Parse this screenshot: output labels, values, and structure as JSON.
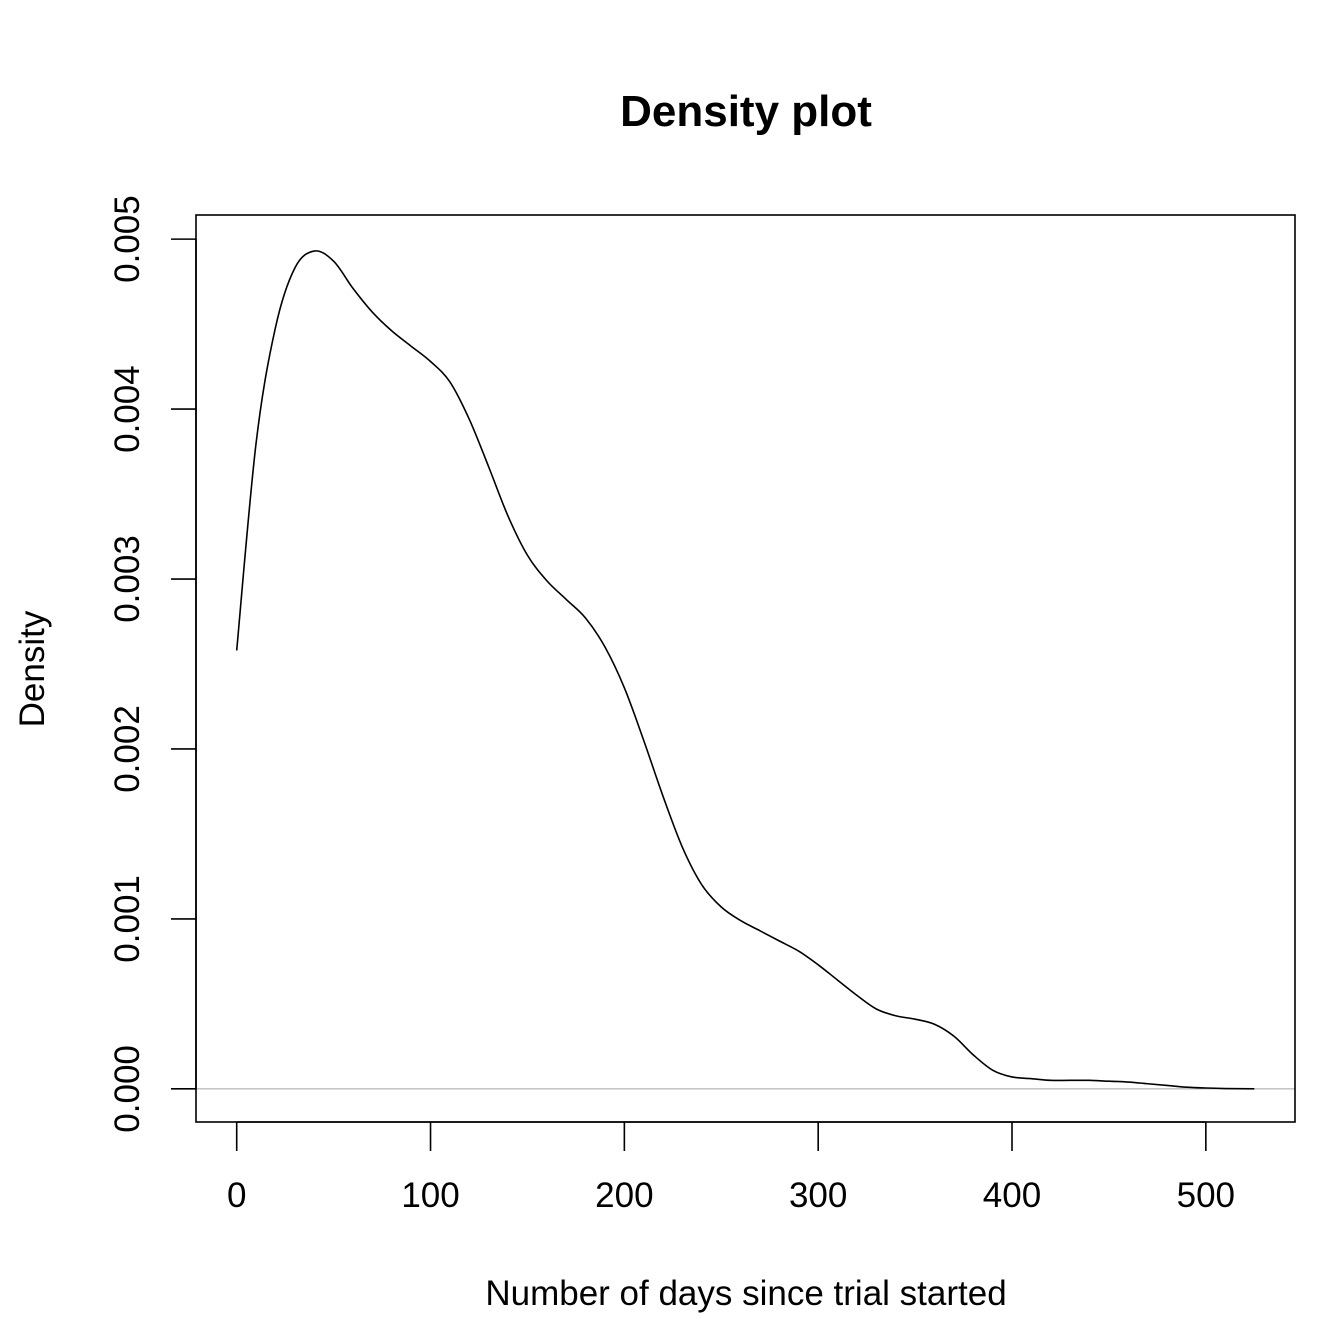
{
  "chart_data": {
    "type": "line",
    "title": "Density plot",
    "xlabel": "Number of days since trial started",
    "ylabel": "Density",
    "xlim": [
      -21,
      546
    ],
    "ylim": [
      -0.000195,
      0.005142
    ],
    "x_ticks": [
      0,
      100,
      200,
      300,
      400,
      500
    ],
    "x_tick_labels": [
      "0",
      "100",
      "200",
      "300",
      "400",
      "500"
    ],
    "y_ticks": [
      0,
      0.001,
      0.002,
      0.003,
      0.004,
      0.005
    ],
    "y_tick_labels": [
      "0.000",
      "0.001",
      "0.002",
      "0.003",
      "0.004",
      "0.005"
    ],
    "baseline": 0,
    "baseline_color": "#bebebe",
    "line_color": "#000000",
    "series": [
      {
        "name": "density",
        "x": [
          0,
          10,
          20,
          30,
          40,
          50,
          60,
          70,
          80,
          90,
          100,
          110,
          120,
          130,
          140,
          150,
          160,
          170,
          180,
          190,
          200,
          210,
          220,
          230,
          240,
          250,
          260,
          270,
          280,
          290,
          300,
          310,
          320,
          330,
          340,
          350,
          360,
          370,
          380,
          390,
          400,
          410,
          420,
          430,
          440,
          450,
          460,
          470,
          480,
          490,
          500,
          510,
          525
        ],
        "y": [
          0.00258,
          0.0038,
          0.00448,
          0.00483,
          0.00493,
          0.00487,
          0.00471,
          0.00457,
          0.00446,
          0.00437,
          0.00428,
          0.00416,
          0.00394,
          0.00366,
          0.00337,
          0.00314,
          0.00299,
          0.00288,
          0.00277,
          0.0026,
          0.00236,
          0.00205,
          0.00172,
          0.00142,
          0.0012,
          0.00107,
          0.00099,
          0.00093,
          0.00087,
          0.00081,
          0.00073,
          0.00064,
          0.00055,
          0.00047,
          0.00043,
          0.00041,
          0.00038,
          0.00031,
          0.0002,
          0.00011,
          7e-05,
          6e-05,
          5e-05,
          5e-05,
          5e-05,
          4.5e-05,
          4e-05,
          3e-05,
          2e-05,
          1e-05,
          5e-06,
          2e-06,
          0
        ]
      }
    ]
  }
}
